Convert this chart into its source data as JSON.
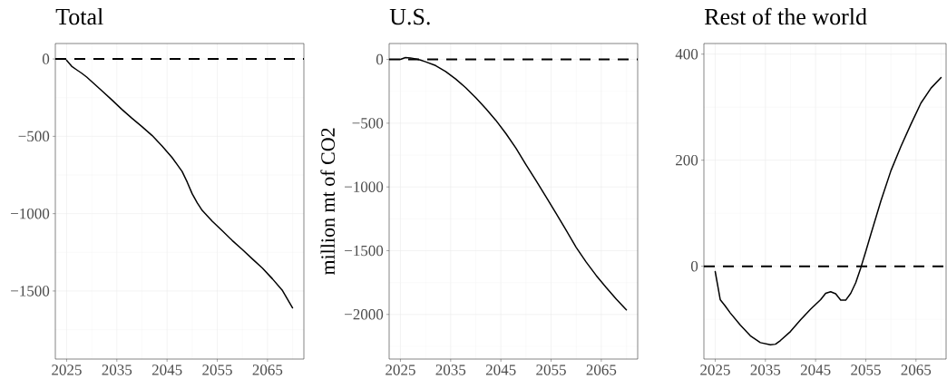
{
  "chart_data": [
    {
      "type": "line",
      "title": "Total",
      "x": [
        2025,
        2026,
        2027,
        2028,
        2029,
        2030,
        2032,
        2034,
        2036,
        2038,
        2040,
        2042,
        2044,
        2046,
        2047,
        2048,
        2049,
        2050,
        2051,
        2052,
        2054,
        2056,
        2058,
        2060,
        2062,
        2064,
        2066,
        2068,
        2070
      ],
      "series": [
        {
          "color": "#000000",
          "values": [
            -8,
            -47,
            -70,
            -92,
            -117,
            -146,
            -205,
            -264,
            -326,
            -383,
            -437,
            -494,
            -562,
            -637,
            -682,
            -727,
            -795,
            -871,
            -930,
            -979,
            -1049,
            -1111,
            -1174,
            -1232,
            -1293,
            -1352,
            -1422,
            -1498,
            -1609
          ]
        }
      ],
      "xlim": [
        2022.75,
        2072.25
      ],
      "xticks": [
        2025,
        2035,
        2045,
        2055,
        2065
      ],
      "ylim": [
        -1940,
        100
      ],
      "yticks": [
        {
          "value": -1500,
          "label": "−1500"
        },
        {
          "value": -1000,
          "label": "−1000"
        },
        {
          "value": -500,
          "label": "−500"
        },
        0
      ],
      "grid": true,
      "ref_lines": [
        {
          "axis": "y",
          "value": 0,
          "line_style": "dashed",
          "color": "#000000"
        }
      ]
    },
    {
      "type": "line",
      "title": "U.S.",
      "ylabel": "million mt of CO2",
      "x": [
        2025,
        2026,
        2027,
        2028,
        2029,
        2030,
        2032,
        2034,
        2036,
        2038,
        2040,
        2042,
        2044,
        2046,
        2048,
        2050,
        2052,
        2054,
        2056,
        2058,
        2060,
        2062,
        2064,
        2066,
        2068,
        2070
      ],
      "series": [
        {
          "color": "#000000",
          "values": [
            0,
            15,
            12,
            5,
            -5,
            -18,
            -48,
            -95,
            -153,
            -222,
            -300,
            -386,
            -477,
            -581,
            -696,
            -825,
            -950,
            -1078,
            -1208,
            -1340,
            -1474,
            -1590,
            -1695,
            -1790,
            -1880,
            -1964
          ]
        }
      ],
      "xlim": [
        2022.75,
        2072.25
      ],
      "xticks": [
        2025,
        2035,
        2045,
        2055,
        2065
      ],
      "ylim": [
        -2350,
        125
      ],
      "yticks": [
        {
          "value": -2000,
          "label": "−2000"
        },
        {
          "value": -1500,
          "label": "−1500"
        },
        {
          "value": -1000,
          "label": "−1000"
        },
        {
          "value": -500,
          "label": "−500"
        },
        0
      ],
      "grid": true,
      "ref_lines": [
        {
          "axis": "y",
          "value": 0,
          "line_style": "dashed",
          "color": "#000000"
        }
      ]
    },
    {
      "type": "line",
      "title": "Rest of the world",
      "x": [
        2025,
        2026,
        2027,
        2028,
        2030,
        2032,
        2034,
        2036,
        2037,
        2038,
        2040,
        2042,
        2044,
        2046,
        2047,
        2048,
        2049,
        2050,
        2051,
        2052,
        2053,
        2054,
        2055,
        2056,
        2058,
        2060,
        2062,
        2064,
        2066,
        2068,
        2070
      ],
      "series": [
        {
          "color": "#000000",
          "values": [
            -10,
            -63,
            -75,
            -88,
            -111,
            -131,
            -144,
            -148,
            -147,
            -140,
            -123,
            -101,
            -81,
            -63,
            -51,
            -48,
            -52,
            -64,
            -64,
            -51,
            -31,
            -3,
            28,
            60,
            123,
            180,
            226,
            268,
            308,
            336,
            356
          ]
        }
      ],
      "xlim": [
        2022.75,
        2071
      ],
      "xticks": [
        2025,
        2035,
        2045,
        2055,
        2065
      ],
      "ylim": [
        -175,
        420
      ],
      "yticks": [
        0,
        200,
        400
      ],
      "grid": true,
      "ref_lines": [
        {
          "axis": "y",
          "value": 0,
          "line_style": "dashed",
          "color": "#000000"
        }
      ]
    }
  ]
}
